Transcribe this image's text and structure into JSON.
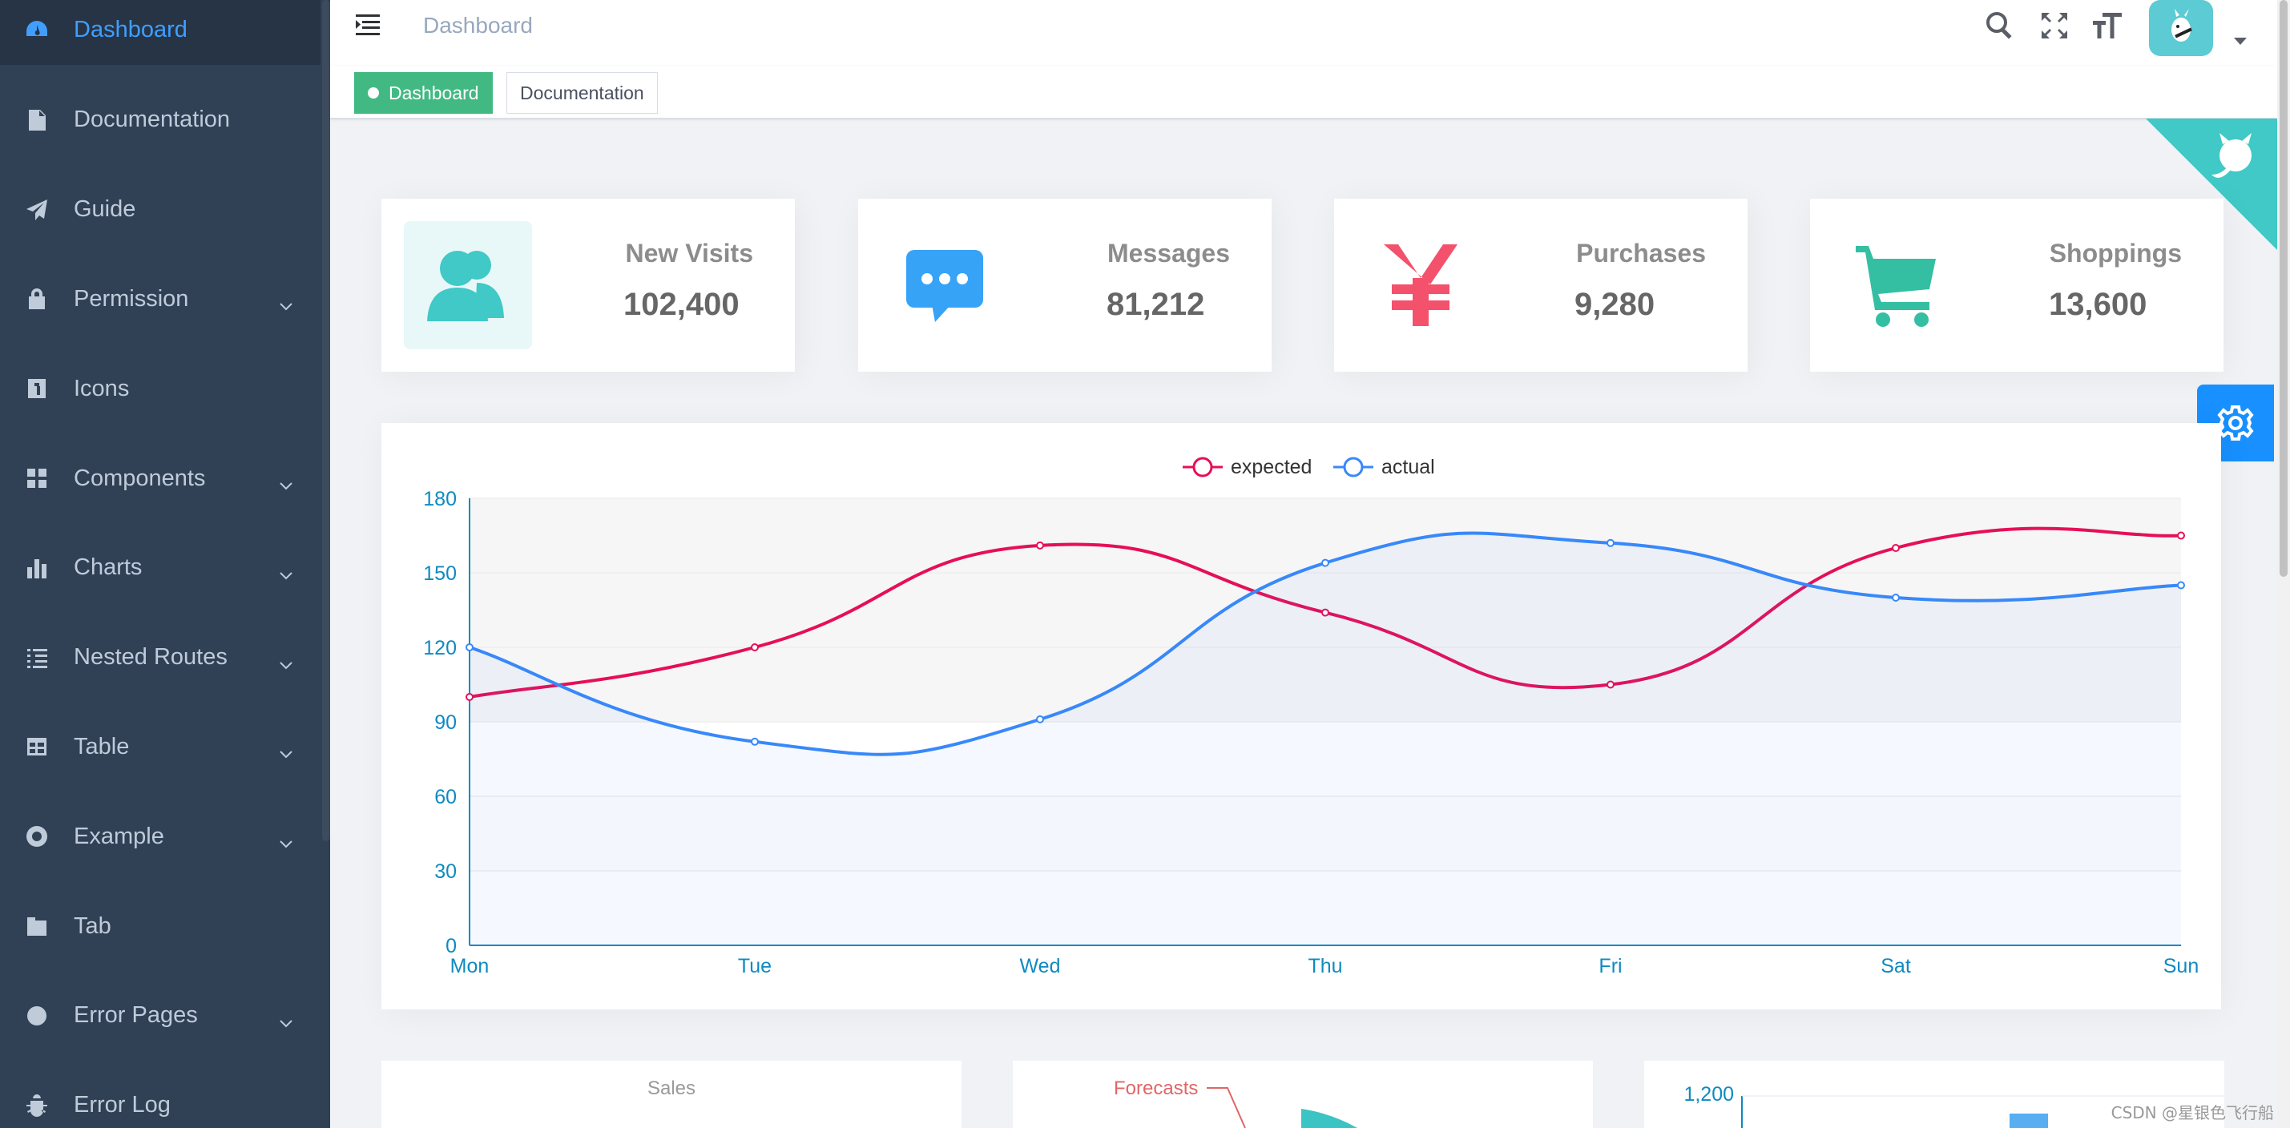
{
  "sidebar": {
    "items": [
      {
        "label": "Dashboard",
        "icon": "dashboard-icon",
        "active": true,
        "has_children": false
      },
      {
        "label": "Documentation",
        "icon": "document-icon",
        "has_children": false
      },
      {
        "label": "Guide",
        "icon": "paper-plane-icon",
        "has_children": false
      },
      {
        "label": "Permission",
        "icon": "lock-icon",
        "has_children": true
      },
      {
        "label": "Icons",
        "icon": "icon-icon",
        "has_children": false
      },
      {
        "label": "Components",
        "icon": "grid-icon",
        "has_children": true
      },
      {
        "label": "Charts",
        "icon": "bar-chart-icon",
        "has_children": true
      },
      {
        "label": "Nested Routes",
        "icon": "nested-list-icon",
        "has_children": true
      },
      {
        "label": "Table",
        "icon": "table-icon",
        "has_children": true
      },
      {
        "label": "Example",
        "icon": "lifebuoy-icon",
        "has_children": true
      },
      {
        "label": "Tab",
        "icon": "tab-icon",
        "has_children": false
      },
      {
        "label": "Error Pages",
        "icon": "404-icon",
        "has_children": true
      },
      {
        "label": "Error Log",
        "icon": "bug-icon",
        "has_children": false
      }
    ]
  },
  "navbar": {
    "breadcrumb": "Dashboard"
  },
  "tags": [
    {
      "label": "Dashboard",
      "active": true
    },
    {
      "label": "Documentation",
      "active": false
    }
  ],
  "panels": [
    {
      "label": "New Visits",
      "value": "102,400",
      "icon": "people-icon",
      "color": "#40c9c6"
    },
    {
      "label": "Messages",
      "value": "81,212",
      "icon": "message-icon",
      "color": "#36a3f7"
    },
    {
      "label": "Purchases",
      "value": "9,280",
      "icon": "yen-icon",
      "color": "#f4516c"
    },
    {
      "label": "Shoppings",
      "value": "13,600",
      "icon": "shopping-cart-icon",
      "color": "#34bfa3"
    }
  ],
  "chart_data": {
    "type": "line",
    "x": [
      "Mon",
      "Tue",
      "Wed",
      "Thu",
      "Fri",
      "Sat",
      "Sun"
    ],
    "series": [
      {
        "name": "expected",
        "values": [
          100,
          120,
          161,
          134,
          105,
          160,
          165
        ],
        "color": "#e60f56"
      },
      {
        "name": "actual",
        "values": [
          120,
          82,
          91,
          154,
          162,
          140,
          145
        ],
        "color": "#3888fa"
      }
    ],
    "ylim": [
      0,
      180
    ],
    "yticks": [
      0,
      30,
      60,
      90,
      120,
      150,
      180
    ],
    "grid": true,
    "legend": "top-center"
  },
  "bottom_cards": {
    "sales_title": "Sales",
    "forecasts_label": "Forecasts",
    "bar_axis_top": "1,200"
  },
  "watermark": "CSDN @星银色飞行船"
}
